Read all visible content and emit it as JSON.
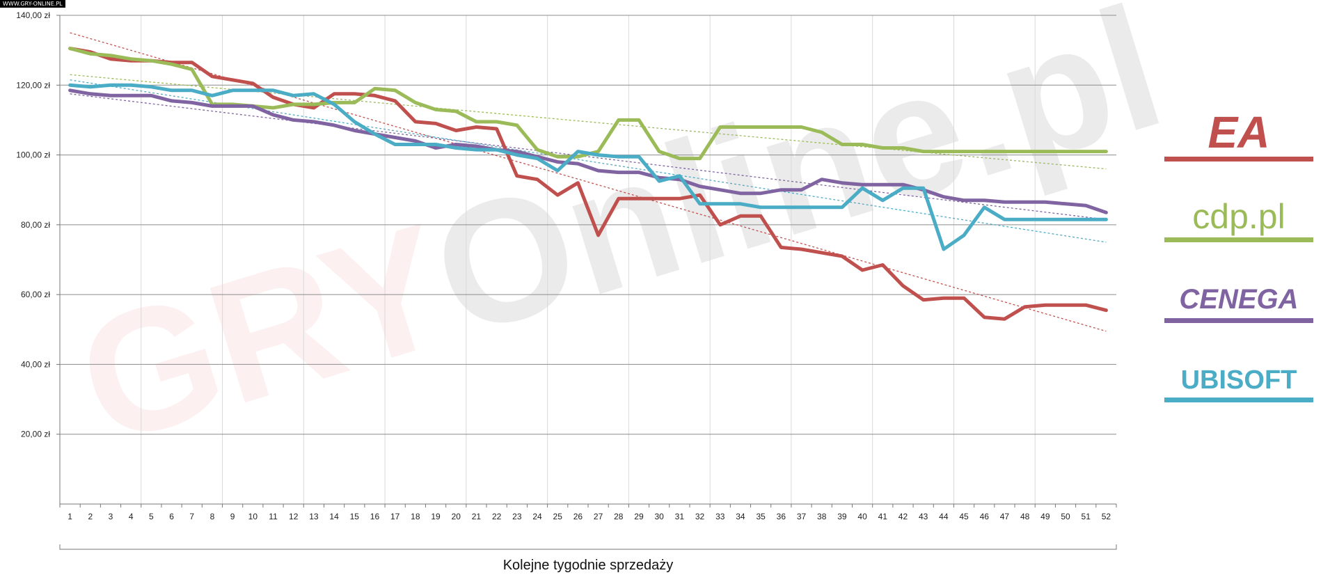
{
  "badge": "WWW.GRY-ONLINE.PL",
  "watermark": {
    "part1": "GRY",
    "part2": "Online",
    "part3": ".pl"
  },
  "chart_data": {
    "type": "line",
    "xlabel": "Kolejne tygodnie sprzedaży",
    "ylabel": "",
    "ylim": [
      0,
      140
    ],
    "yticks": [
      {
        "value": 20,
        "label": "20,00 zł"
      },
      {
        "value": 40,
        "label": "40,00 zł"
      },
      {
        "value": 60,
        "label": "60,00 zł"
      },
      {
        "value": 80,
        "label": "80,00 zł"
      },
      {
        "value": 100,
        "label": "100,00 zł"
      },
      {
        "value": 120,
        "label": "120,00 zł"
      },
      {
        "value": 140,
        "label": "140,00 zł"
      }
    ],
    "x": [
      1,
      2,
      3,
      4,
      5,
      6,
      7,
      8,
      9,
      10,
      11,
      12,
      13,
      14,
      15,
      16,
      17,
      18,
      19,
      20,
      21,
      22,
      23,
      24,
      25,
      26,
      27,
      28,
      29,
      30,
      31,
      32,
      33,
      34,
      35,
      36,
      37,
      38,
      39,
      40,
      41,
      42,
      43,
      44,
      45,
      46,
      47,
      48,
      49,
      50,
      51,
      52
    ],
    "grid": {
      "horizontal": true,
      "vertical": true
    },
    "legend": "right",
    "series": [
      {
        "name": "EA",
        "color": "#c0504d",
        "values": [
          130.5,
          129.5,
          127.5,
          127,
          127,
          126.5,
          126.5,
          122.5,
          121.5,
          120.5,
          116.5,
          114.5,
          113.5,
          117.5,
          117.5,
          117,
          115.5,
          109.5,
          109,
          107,
          108,
          107.5,
          94,
          93,
          88.5,
          92,
          77,
          87.5,
          87.5,
          87.5,
          87.5,
          88.5,
          80,
          82.5,
          82.5,
          73.5,
          73,
          72,
          71,
          67,
          68.5,
          62.5,
          58.5,
          59,
          59,
          53.5,
          53,
          56.5,
          57,
          57,
          57,
          55.5
        ],
        "trend": [
          135,
          49.5
        ]
      },
      {
        "name": "cdp.pl",
        "color": "#9bbb59",
        "values": [
          130.5,
          129,
          128.5,
          127.5,
          127,
          126,
          124.5,
          114.5,
          114.5,
          114,
          113.5,
          114.5,
          114.5,
          115,
          115,
          119,
          118.5,
          115,
          113,
          112.5,
          109.5,
          109.5,
          108.5,
          101.5,
          99.5,
          99.5,
          101,
          110,
          110,
          101,
          99,
          99,
          108,
          108,
          108,
          108,
          108,
          106.5,
          103,
          103,
          102,
          102,
          101,
          101,
          101,
          101,
          101,
          101,
          101,
          101,
          101,
          101
        ],
        "trend": [
          123,
          96
        ]
      },
      {
        "name": "CENEGA",
        "color": "#8064a2",
        "values": [
          118.5,
          117.5,
          117,
          117,
          117,
          115.5,
          115,
          114,
          114,
          114,
          111.5,
          110,
          109.5,
          108.5,
          107,
          106,
          105,
          104,
          102,
          103,
          102.5,
          101.5,
          101,
          99.5,
          98,
          97.5,
          95.5,
          95,
          95,
          93.5,
          93,
          91,
          90,
          89,
          89,
          90,
          90,
          93,
          92,
          91.5,
          91.5,
          91.5,
          90,
          88,
          87,
          87,
          86.5,
          86.5,
          86.5,
          86,
          85.5,
          83.5
        ],
        "trend": [
          117.5,
          81.5
        ]
      },
      {
        "name": "UBISOFT",
        "color": "#4bacc6",
        "values": [
          120,
          119.5,
          120,
          120,
          119.5,
          118.5,
          118.5,
          117,
          118.5,
          118.5,
          118.5,
          117,
          117.5,
          114.5,
          109.5,
          106,
          103,
          103,
          103,
          102,
          101.5,
          101.5,
          100,
          99,
          95.5,
          101,
          100,
          99.5,
          99.5,
          92.5,
          94,
          86,
          86,
          86,
          85,
          85,
          85,
          85,
          85,
          90.5,
          87,
          90.5,
          90.5,
          73,
          77,
          85,
          81.5,
          81.5,
          81.5,
          81.5,
          81.5,
          81.5
        ],
        "trend": [
          121.5,
          75
        ]
      }
    ]
  },
  "logos": [
    {
      "name": "EA",
      "text": "EA",
      "color": "#c0504d"
    },
    {
      "name": "cdp.pl",
      "text": "cdp.pl",
      "color": "#9bbb59"
    },
    {
      "name": "CENEGA",
      "text": "CENEGA",
      "color": "#8064a2"
    },
    {
      "name": "UBISOFT",
      "text": "UBISOFT",
      "color": "#4bacc6"
    }
  ]
}
